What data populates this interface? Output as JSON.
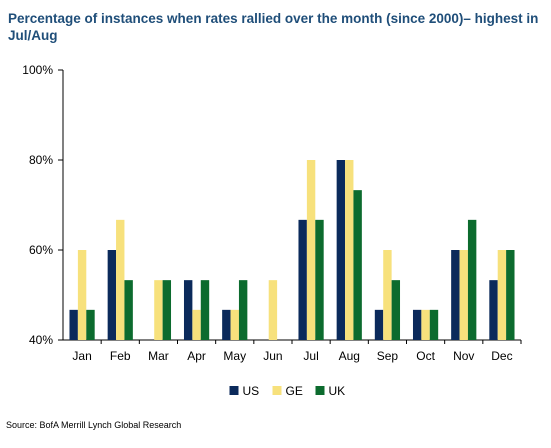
{
  "title": "Percentage of instances when rates rallied over the month (since 2000)– highest in Jul/Aug",
  "source": "Source: BofA Merrill Lynch Global Research",
  "chart_data": {
    "type": "bar",
    "title": "Percentage of instances when rates rallied over the month (since 2000)– highest in Jul/Aug",
    "xlabel": "",
    "ylabel": "",
    "categories": [
      "Jan",
      "Feb",
      "Mar",
      "Apr",
      "May",
      "Jun",
      "Jul",
      "Aug",
      "Sep",
      "Oct",
      "Nov",
      "Dec"
    ],
    "series": [
      {
        "name": "US",
        "color": "#0b2a5b",
        "values": [
          46.7,
          60,
          40,
          53.3,
          46.7,
          40,
          66.7,
          80,
          46.7,
          46.7,
          60,
          53.3
        ]
      },
      {
        "name": "GE",
        "color": "#f7e17c",
        "values": [
          60,
          66.7,
          53.3,
          46.7,
          46.7,
          53.3,
          80,
          80,
          60,
          46.7,
          60,
          60
        ]
      },
      {
        "name": "UK",
        "color": "#0c6b2e",
        "values": [
          46.7,
          53.3,
          53.3,
          53.3,
          53.3,
          40,
          66.7,
          73.3,
          53.3,
          46.7,
          66.7,
          60
        ]
      }
    ],
    "ylim": [
      40,
      100
    ],
    "yticks": [
      40,
      60,
      80,
      100
    ],
    "ytick_labels": [
      "40%",
      "60%",
      "80%",
      "100%"
    ],
    "grid": false,
    "legend_position": "bottom-center"
  }
}
